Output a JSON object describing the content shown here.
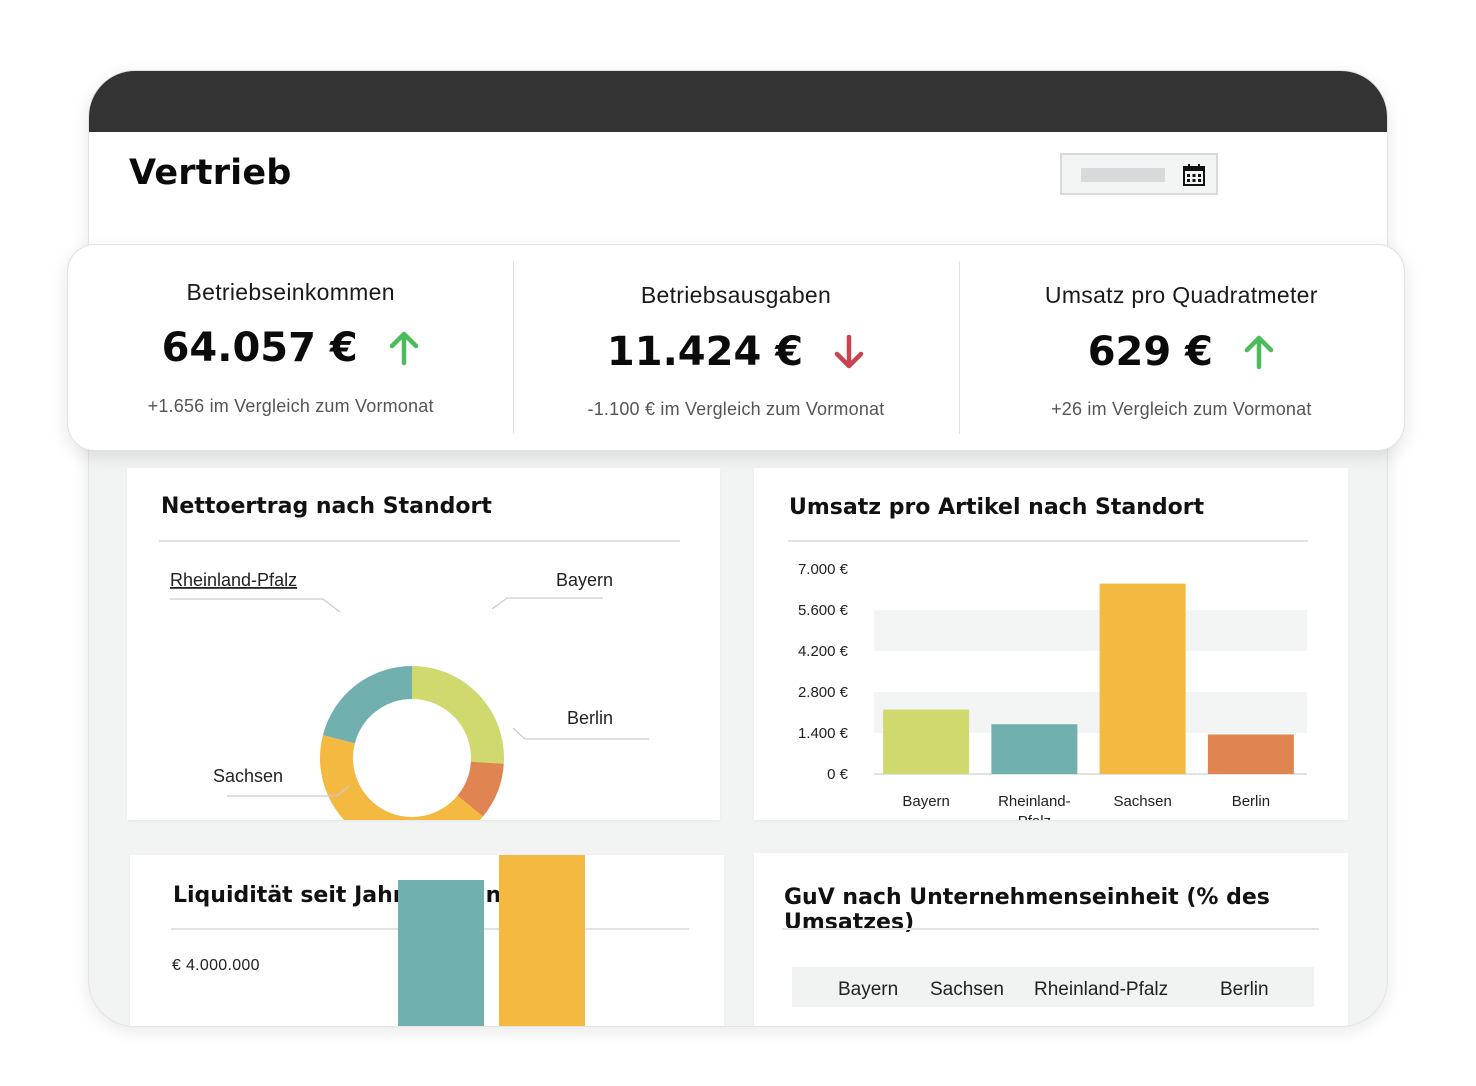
{
  "page": {
    "title": "Vertrieb"
  },
  "kpis": [
    {
      "label": "Betriebseinkommen",
      "value": "64.057 €",
      "trend": "up",
      "change": "+1.656 im Vergleich zum Vormonat"
    },
    {
      "label": "Betriebsausgaben",
      "value": "11.424 €",
      "trend": "down",
      "change": "-1.100 € im Vergleich zum Vormonat"
    },
    {
      "label": "Umsatz pro Quadratmeter",
      "value": "629 €",
      "trend": "up",
      "change": "+26 im Vergleich zum Vormonat"
    }
  ],
  "colors": {
    "up": "#4cbb5b",
    "down": "#c7434f",
    "lime": "#cfd96e",
    "teal": "#72b0b0",
    "orange": "#e08552",
    "yellow": "#f4b941"
  },
  "icons": {
    "date_picker": "calendar-icon",
    "trend_up": "arrow-up-icon",
    "trend_down": "arrow-down-icon"
  },
  "cards": {
    "net_income": {
      "title": "Nettoertrag nach Standort"
    },
    "sales_per_item": {
      "title": "Umsatz pro Artikel nach Standort"
    },
    "liquidity": {
      "title": "Liquidität seit Jahresbeginn",
      "y_label": "€ 4.000.000"
    },
    "pnl": {
      "title": "GuV nach Unternehmenseinheit (% des Umsatzes)",
      "columns": [
        "Bayern",
        "Sachsen",
        "Rheinland-Pfalz",
        "Berlin"
      ]
    }
  },
  "chart_data": [
    {
      "type": "pie",
      "title": "Nettoertrag nach Standort",
      "donut": true,
      "labels": [
        "Bayern",
        "Berlin",
        "Sachsen",
        "Rheinland-Pfalz"
      ],
      "values": [
        26,
        10,
        43,
        21
      ],
      "colors": [
        "#cfd96e",
        "#e08552",
        "#f4b941",
        "#72b0b0"
      ]
    },
    {
      "type": "bar",
      "title": "Umsatz pro Artikel nach Standort",
      "categories": [
        "Bayern",
        "Rheinland-\nPfalz",
        "Sachsen",
        "Berlin"
      ],
      "values": [
        2200,
        1700,
        6500,
        1350
      ],
      "colors": [
        "#cfd96e",
        "#72b0b0",
        "#f4b941",
        "#e08552"
      ],
      "yticks": [
        "0 €",
        "1.400 €",
        "2.800 €",
        "4.200 €",
        "5.600 €",
        "7.000 €"
      ],
      "ylim": [
        0,
        7000
      ]
    },
    {
      "type": "bar",
      "title": "Liquidität seit Jahresbeginn",
      "ylabel": "€ 4.000.000",
      "values": [
        3600000,
        4700000
      ],
      "colors": [
        "#72b0b0",
        "#f4b941"
      ]
    }
  ]
}
